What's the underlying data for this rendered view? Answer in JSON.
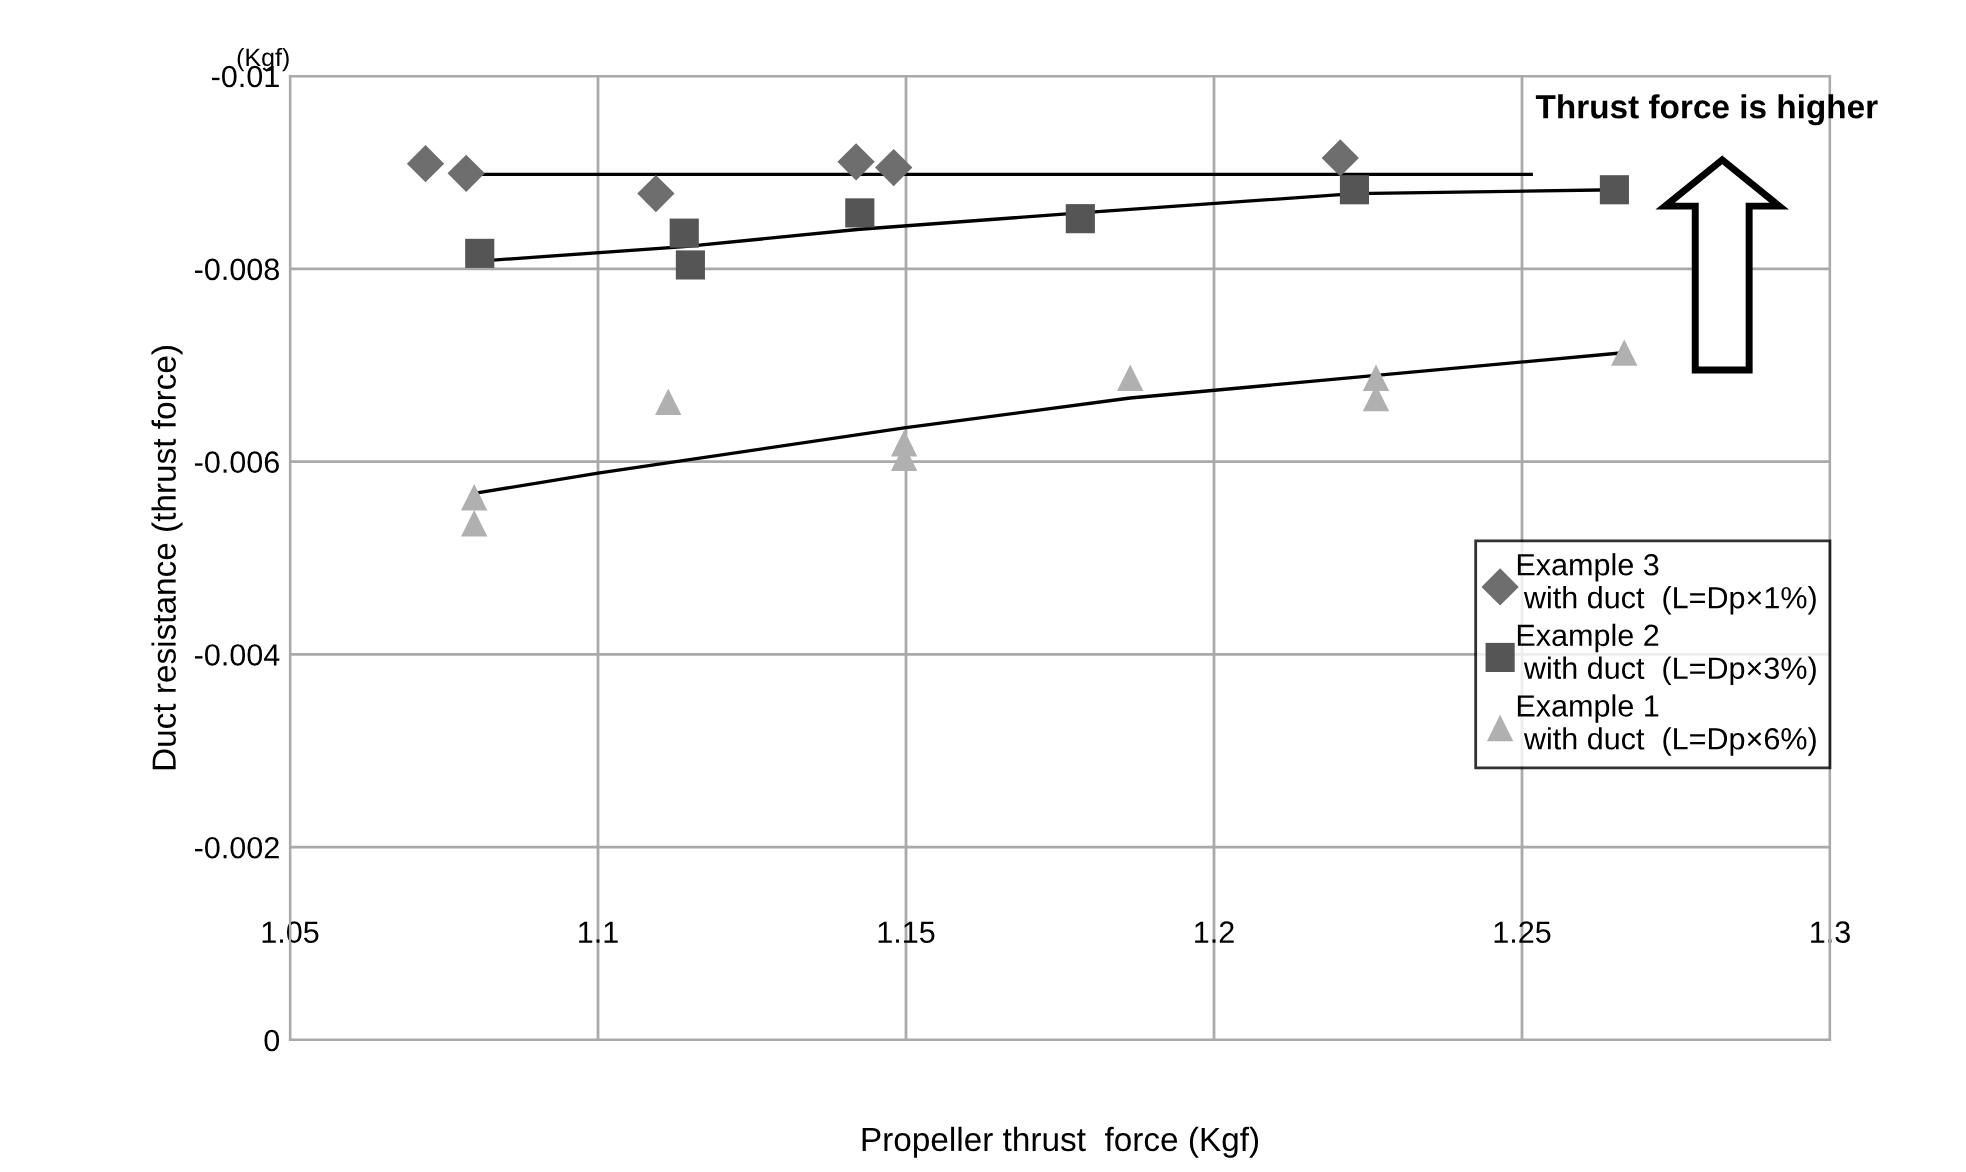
{
  "chart_data": {
    "type": "scatter",
    "xlabel": "Propeller thrust  force (Kgf)",
    "ylabel": "Duct resistance (thrust force)",
    "annotations": [
      "(Kgf)",
      "Thrust force is higher"
    ],
    "xlim": [
      1.05,
      1.3
    ],
    "xticks": [
      1.05,
      1.1,
      1.15,
      1.2,
      1.25,
      1.3
    ],
    "ylim": [
      0,
      -0.01
    ],
    "yticks": [
      -0.01,
      -0.008,
      -0.006,
      -0.004,
      -0.002,
      0
    ],
    "grid": true,
    "legend": "right",
    "series": [
      {
        "name": "Example 3\n with duct  (L=Dp×1%)",
        "color": "#6e6e6e",
        "marker": "diamond",
        "x": [
          1.072,
          1.0786,
          1.1094,
          1.1419,
          1.148,
          1.2205
        ],
        "values": [
          -0.00909,
          -0.00899,
          -0.00878,
          -0.00911,
          -0.00905,
          -0.00915
        ]
      },
      {
        "name": "Example 2\n with duct  (L=Dp×3%)",
        "color": "#555555",
        "marker": "square",
        "x": [
          1.0808,
          1.114,
          1.115,
          1.1425,
          1.1783,
          1.2228,
          1.265
        ],
        "values": [
          -0.00816,
          -0.00837,
          -0.00804,
          -0.00858,
          -0.00852,
          -0.00882,
          -0.00882
        ]
      },
      {
        "name": "Example 1\n with duct  (L=Dp×6%)",
        "color": "#b0b0b0",
        "marker": "triangle",
        "x": [
          1.0799,
          1.0799,
          1.1114,
          1.1497,
          1.1497,
          1.1864,
          1.2263,
          1.2263,
          1.2666
        ],
        "values": [
          -0.00563,
          -0.00536,
          -0.00662,
          -0.00619,
          -0.00604,
          -0.00687,
          -0.00687,
          -0.00666,
          -0.00713
        ]
      },
      {
        "type": "line",
        "color": "#000000",
        "marker": "none",
        "x": [
          1.0786,
          1.2515
        ],
        "values": [
          -0.00898,
          -0.00898
        ]
      },
      {
        "type": "line",
        "color": "#000000",
        "marker": "none",
        "x": [
          1.0808,
          1.114,
          1.1425,
          1.1783,
          1.2228,
          1.265
        ],
        "values": [
          -0.00808,
          -0.00823,
          -0.00841,
          -0.00858,
          -0.00878,
          -0.00882
        ]
      },
      {
        "type": "line",
        "color": "#000000",
        "marker": "none",
        "x": [
          1.0799,
          1.1,
          1.1497,
          1.1864,
          1.2666
        ],
        "values": [
          -0.00567,
          -0.00588,
          -0.00635,
          -0.00666,
          -0.00713
        ]
      }
    ]
  }
}
